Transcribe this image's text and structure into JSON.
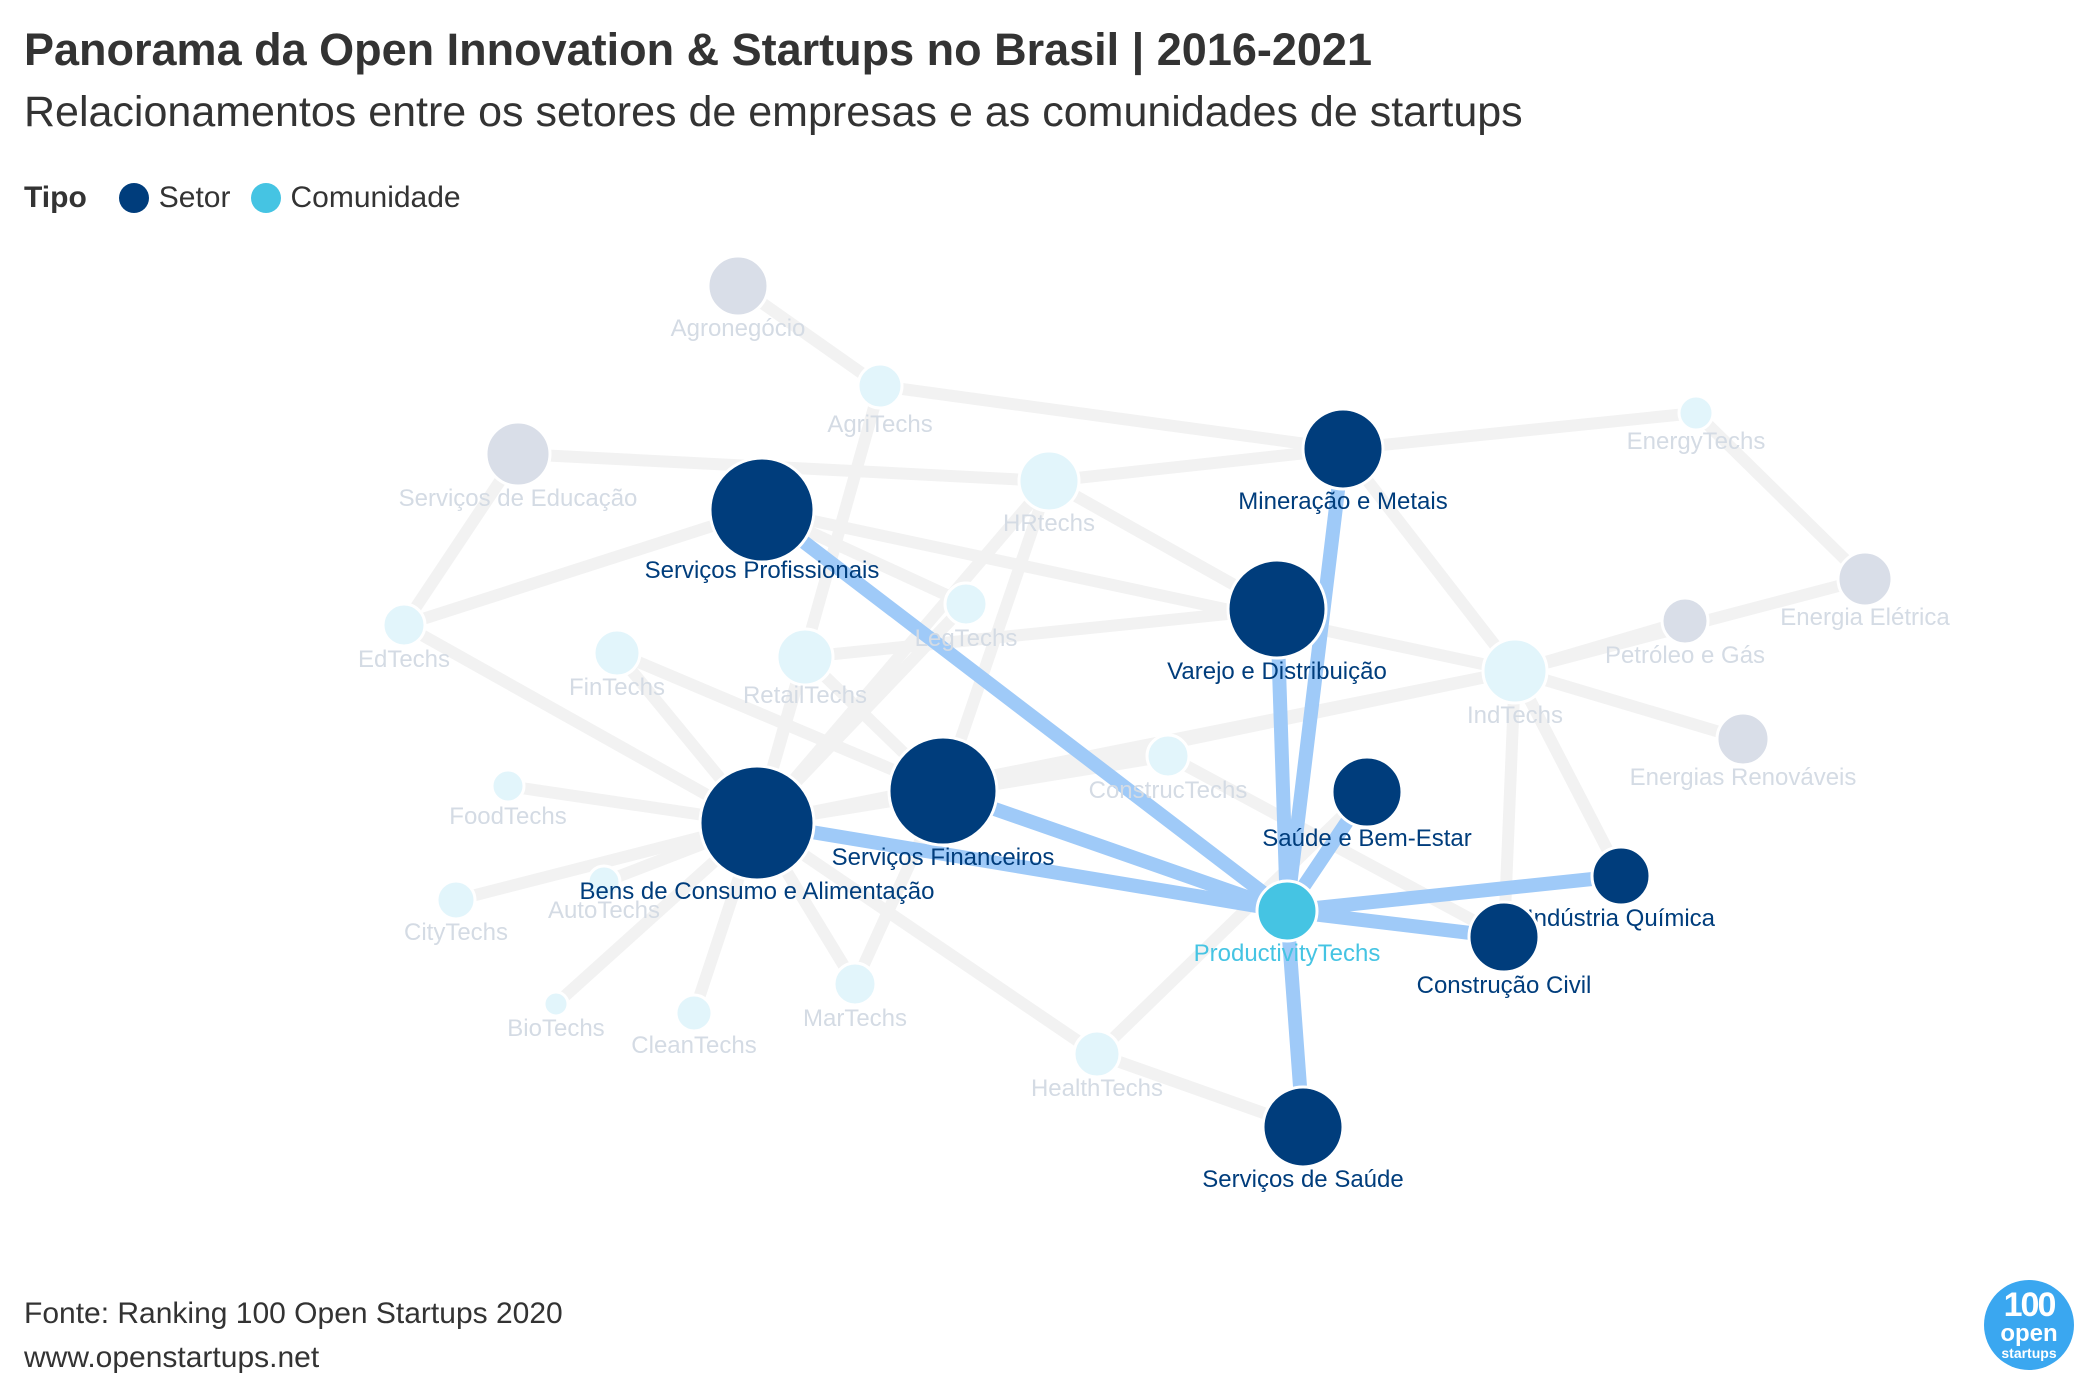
{
  "header": {
    "title": "Panorama da Open Innovation & Startups no Brasil | 2016-2021",
    "subtitle": "Relacionamentos entre os setores de empresas e as comunidades de startups"
  },
  "legend": {
    "title": "Tipo",
    "items": [
      {
        "label": "Setor",
        "color": "#003d7c"
      },
      {
        "label": "Comunidade",
        "color": "#45c4e3"
      }
    ]
  },
  "footer": {
    "source": "Fonte: Ranking 100 Open Startups 2020",
    "url": "www.openstartups.net"
  },
  "logo": {
    "line1": "100",
    "line2": "open",
    "line3": "startups"
  },
  "colors": {
    "setor_active": "#003d7c",
    "setor_faded": "#d9dee8",
    "comunidade_active": "#45c4e3",
    "comunidade_faded": "#e2f5fb",
    "edge_active": "#9fcaf8",
    "edge_faded": "#f2f2f2",
    "label_active_setor": "#003d7c",
    "label_active_comunidade": "#45c4e3",
    "label_faded": "#d4dbe4"
  },
  "chart_data": {
    "type": "network",
    "highlighted_node": "ProductivityTechs",
    "nodes": [
      {
        "id": "Agronegócio",
        "type": "Setor",
        "active": false
      },
      {
        "id": "AgriTechs",
        "type": "Comunidade",
        "active": false
      },
      {
        "id": "Serviços de Educação",
        "type": "Setor",
        "active": false
      },
      {
        "id": "Serviços Profissionais",
        "type": "Setor",
        "active": true
      },
      {
        "id": "HRtechs",
        "type": "Comunidade",
        "active": false
      },
      {
        "id": "Mineração e Metais",
        "type": "Setor",
        "active": true
      },
      {
        "id": "EnergyTechs",
        "type": "Comunidade",
        "active": false
      },
      {
        "id": "EdTechs",
        "type": "Comunidade",
        "active": false
      },
      {
        "id": "FinTechs",
        "type": "Comunidade",
        "active": false
      },
      {
        "id": "RetailTechs",
        "type": "Comunidade",
        "active": false
      },
      {
        "id": "LegTechs",
        "type": "Comunidade",
        "active": false
      },
      {
        "id": "Varejo e Distribuição",
        "type": "Setor",
        "active": true
      },
      {
        "id": "IndTechs",
        "type": "Comunidade",
        "active": false
      },
      {
        "id": "Petróleo e Gás",
        "type": "Setor",
        "active": false
      },
      {
        "id": "Energia Elétrica",
        "type": "Setor",
        "active": false
      },
      {
        "id": "Energias Renováveis",
        "type": "Setor",
        "active": false
      },
      {
        "id": "FoodTechs",
        "type": "Comunidade",
        "active": false
      },
      {
        "id": "Bens de Consumo e Alimentação",
        "type": "Setor",
        "active": true
      },
      {
        "id": "Serviços Financeiros",
        "type": "Setor",
        "active": true
      },
      {
        "id": "ConstrucTechs",
        "type": "Comunidade",
        "active": false
      },
      {
        "id": "Saúde e Bem-Estar",
        "type": "Setor",
        "active": true
      },
      {
        "id": "AutoTechs",
        "type": "Comunidade",
        "active": false
      },
      {
        "id": "CityTechs",
        "type": "Comunidade",
        "active": false
      },
      {
        "id": "ProductivityTechs",
        "type": "Comunidade",
        "active": true
      },
      {
        "id": "Indústria Química",
        "type": "Setor",
        "active": true
      },
      {
        "id": "Construção Civil",
        "type": "Setor",
        "active": true
      },
      {
        "id": "BioTechs",
        "type": "Comunidade",
        "active": false
      },
      {
        "id": "CleanTechs",
        "type": "Comunidade",
        "active": false
      },
      {
        "id": "MarTechs",
        "type": "Comunidade",
        "active": false
      },
      {
        "id": "HealthTechs",
        "type": "Comunidade",
        "active": false
      },
      {
        "id": "Serviços de Saúde",
        "type": "Setor",
        "active": true
      }
    ],
    "edges": [
      {
        "source": "ProductivityTechs",
        "target": "Serviços Profissionais",
        "active": true
      },
      {
        "source": "ProductivityTechs",
        "target": "Mineração e Metais",
        "active": true
      },
      {
        "source": "ProductivityTechs",
        "target": "Varejo e Distribuição",
        "active": true
      },
      {
        "source": "ProductivityTechs",
        "target": "Serviços Financeiros",
        "active": true
      },
      {
        "source": "ProductivityTechs",
        "target": "Bens de Consumo e Alimentação",
        "active": true
      },
      {
        "source": "ProductivityTechs",
        "target": "Saúde e Bem-Estar",
        "active": true
      },
      {
        "source": "ProductivityTechs",
        "target": "Indústria Química",
        "active": true
      },
      {
        "source": "ProductivityTechs",
        "target": "Construção Civil",
        "active": true
      },
      {
        "source": "ProductivityTechs",
        "target": "Serviços de Saúde",
        "active": true
      },
      {
        "source": "Agronegócio",
        "target": "AgriTechs",
        "active": false
      },
      {
        "source": "AgriTechs",
        "target": "Mineração e Metais",
        "active": false
      },
      {
        "source": "AgriTechs",
        "target": "Bens de Consumo e Alimentação",
        "active": false
      },
      {
        "source": "Serviços de Educação",
        "target": "HRtechs",
        "active": false
      },
      {
        "source": "Serviços de Educação",
        "target": "EdTechs",
        "active": false
      },
      {
        "source": "EdTechs",
        "target": "Serviços Profissionais",
        "active": false
      },
      {
        "source": "EdTechs",
        "target": "Bens de Consumo e Alimentação",
        "active": false
      },
      {
        "source": "HRtechs",
        "target": "Mineração e Metais",
        "active": false
      },
      {
        "source": "HRtechs",
        "target": "Varejo e Distribuição",
        "active": false
      },
      {
        "source": "HRtechs",
        "target": "Bens de Consumo e Alimentação",
        "active": false
      },
      {
        "source": "HRtechs",
        "target": "Serviços Financeiros",
        "active": false
      },
      {
        "source": "Mineração e Metais",
        "target": "EnergyTechs",
        "active": false
      },
      {
        "source": "Mineração e Metais",
        "target": "IndTechs",
        "active": false
      },
      {
        "source": "EnergyTechs",
        "target": "Energia Elétrica",
        "active": false
      },
      {
        "source": "Energia Elétrica",
        "target": "IndTechs",
        "active": false
      },
      {
        "source": "Petróleo e Gás",
        "target": "IndTechs",
        "active": false
      },
      {
        "source": "Energias Renováveis",
        "target": "IndTechs",
        "active": false
      },
      {
        "source": "IndTechs",
        "target": "Serviços Profissionais",
        "active": false
      },
      {
        "source": "IndTechs",
        "target": "Bens de Consumo e Alimentação",
        "active": false
      },
      {
        "source": "IndTechs",
        "target": "Construção Civil",
        "active": false
      },
      {
        "source": "IndTechs",
        "target": "Indústria Química",
        "active": false
      },
      {
        "source": "IndTechs",
        "target": "Serviços Financeiros",
        "active": false
      },
      {
        "source": "FinTechs",
        "target": "Serviços Financeiros",
        "active": false
      },
      {
        "source": "FinTechs",
        "target": "Bens de Consumo e Alimentação",
        "active": false
      },
      {
        "source": "RetailTechs",
        "target": "Varejo e Distribuição",
        "active": false
      },
      {
        "source": "RetailTechs",
        "target": "Bens de Consumo e Alimentação",
        "active": false
      },
      {
        "source": "RetailTechs",
        "target": "Serviços Financeiros",
        "active": false
      },
      {
        "source": "LegTechs",
        "target": "Serviços Profissionais",
        "active": false
      },
      {
        "source": "LegTechs",
        "target": "Bens de Consumo e Alimentação",
        "active": false
      },
      {
        "source": "FoodTechs",
        "target": "Bens de Consumo e Alimentação",
        "active": false
      },
      {
        "source": "CityTechs",
        "target": "Bens de Consumo e Alimentação",
        "active": false
      },
      {
        "source": "AutoTechs",
        "target": "Bens de Consumo e Alimentação",
        "active": false
      },
      {
        "source": "BioTechs",
        "target": "Bens de Consumo e Alimentação",
        "active": false
      },
      {
        "source": "CleanTechs",
        "target": "Bens de Consumo e Alimentação",
        "active": false
      },
      {
        "source": "MarTechs",
        "target": "Bens de Consumo e Alimentação",
        "active": false
      },
      {
        "source": "MarTechs",
        "target": "Serviços Financeiros",
        "active": false
      },
      {
        "source": "ConstrucTechs",
        "target": "Construção Civil",
        "active": false
      },
      {
        "source": "ConstrucTechs",
        "target": "Bens de Consumo e Alimentação",
        "active": false
      },
      {
        "source": "HealthTechs",
        "target": "Serviços de Saúde",
        "active": false
      },
      {
        "source": "HealthTechs",
        "target": "Saúde e Bem-Estar",
        "active": false
      },
      {
        "source": "HealthTechs",
        "target": "Bens de Consumo e Alimentação",
        "active": false
      }
    ]
  }
}
